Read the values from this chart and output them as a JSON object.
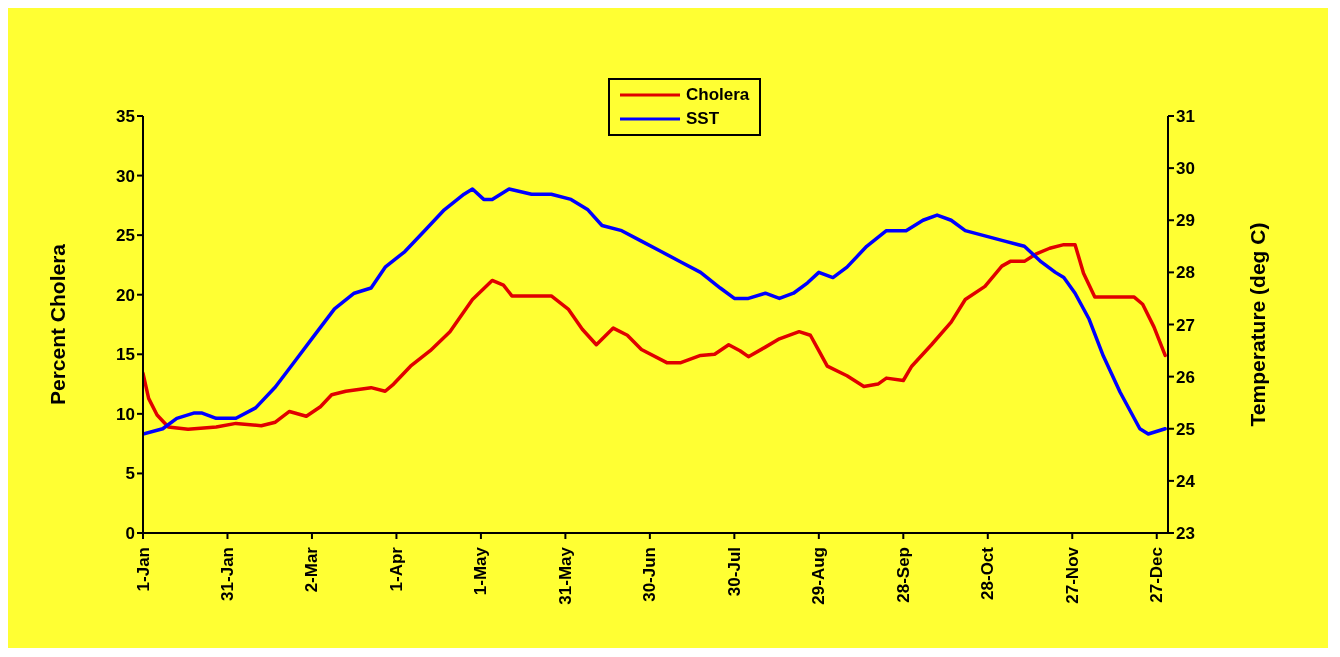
{
  "chart_data": {
    "type": "line",
    "ylabel": "Percent Cholera",
    "y2label": "Temperature (deg C)",
    "xlim": [
      "--01-01",
      "--12-31"
    ],
    "xticks": [
      {
        "value": "--01-01",
        "label": "1-Jan"
      },
      {
        "value": "--01-31",
        "label": "31-Jan"
      },
      {
        "value": "--03-02",
        "label": "2-Mar"
      },
      {
        "value": "--04-01",
        "label": "1-Apr"
      },
      {
        "value": "--05-01",
        "label": "1-May"
      },
      {
        "value": "--05-31",
        "label": "31-May"
      },
      {
        "value": "--06-30",
        "label": "30-Jun"
      },
      {
        "value": "--07-30",
        "label": "30-Jul"
      },
      {
        "value": "--08-29",
        "label": "29-Aug"
      },
      {
        "value": "--09-28",
        "label": "28-Sep"
      },
      {
        "value": "--10-28",
        "label": "28-Oct"
      },
      {
        "value": "--11-27",
        "label": "27-Nov"
      },
      {
        "value": "--12-27",
        "label": "27-Dec"
      }
    ],
    "ylim": [
      0,
      35
    ],
    "yticks": [
      0,
      5,
      10,
      15,
      20,
      25,
      30,
      35
    ],
    "y2lim": [
      23,
      31
    ],
    "y2ticks": [
      23,
      24,
      25,
      26,
      27,
      28,
      29,
      30,
      31
    ],
    "legend": "top",
    "marker": "none",
    "line_style": "solid",
    "series": [
      {
        "name": "Cholera",
        "color": "#e00000",
        "x": [
          "--01-01",
          "--01-03",
          "--01-06",
          "--01-10",
          "--01-17",
          "--01-27",
          "--02-03",
          "--02-12",
          "--02-17",
          "--02-22",
          "--02-28",
          "--03-05",
          "--03-09",
          "--03-14",
          "--03-23",
          "--03-28",
          "--03-31",
          "--04-06",
          "--04-13",
          "--04-20",
          "--04-28",
          "--05-05",
          "--05-09",
          "--05-12",
          "--05-26",
          "--06-01",
          "--06-06",
          "--06-11",
          "--06-17",
          "--06-22",
          "--06-27",
          "--07-06",
          "--07-11",
          "--07-18",
          "--07-23",
          "--07-28",
          "--08-01",
          "--08-04",
          "--08-10",
          "--08-15",
          "--08-22",
          "--08-26",
          "--08-29",
          "--09-01",
          "--09-08",
          "--09-14",
          "--09-19",
          "--09-22",
          "--09-28",
          "--10-01",
          "--10-08",
          "--10-15",
          "--10-20",
          "--10-27",
          "--11-02",
          "--11-05",
          "--11-10",
          "--11-14",
          "--11-19",
          "--11-24",
          "--11-28",
          "--12-01",
          "--12-05",
          "--12-19",
          "--12-22",
          "--12-26",
          "--12-30"
        ],
        "values": [
          13.4,
          11.3,
          9.9,
          8.9,
          8.7,
          8.9,
          9.2,
          9.0,
          9.3,
          10.2,
          9.8,
          10.6,
          11.6,
          11.9,
          12.2,
          11.9,
          12.5,
          14.0,
          15.3,
          16.9,
          19.6,
          21.2,
          20.8,
          19.9,
          19.9,
          18.8,
          17.1,
          15.8,
          17.2,
          16.6,
          15.4,
          14.3,
          14.3,
          14.9,
          15.0,
          15.8,
          15.3,
          14.8,
          15.6,
          16.3,
          16.9,
          16.6,
          15.3,
          14.0,
          13.2,
          12.3,
          12.5,
          13.0,
          12.8,
          14.0,
          15.8,
          17.7,
          19.6,
          20.7,
          22.4,
          22.8,
          22.8,
          23.4,
          23.9,
          24.2,
          24.2,
          21.8,
          19.8,
          19.8,
          19.2,
          17.3,
          14.9
        ]
      },
      {
        "name": "SST",
        "color": "#0000ff",
        "axis": "y2",
        "x": [
          "--01-01",
          "--01-08",
          "--01-13",
          "--01-19",
          "--01-22",
          "--01-27",
          "--02-03",
          "--02-10",
          "--02-17",
          "--02-24",
          "--03-03",
          "--03-10",
          "--03-17",
          "--03-23",
          "--03-28",
          "--04-04",
          "--04-11",
          "--04-18",
          "--04-25",
          "--04-28",
          "--05-02",
          "--05-05",
          "--05-11",
          "--05-19",
          "--05-26",
          "--06-02",
          "--06-08",
          "--06-13",
          "--06-20",
          "--06-27",
          "--07-04",
          "--07-11",
          "--07-18",
          "--07-25",
          "--07-30",
          "--08-04",
          "--08-10",
          "--08-15",
          "--08-20",
          "--08-25",
          "--08-29",
          "--09-03",
          "--09-08",
          "--09-15",
          "--09-22",
          "--09-29",
          "--10-05",
          "--10-10",
          "--10-15",
          "--10-20",
          "--10-27",
          "--11-03",
          "--11-10",
          "--11-16",
          "--11-21",
          "--11-24",
          "--11-28",
          "--12-03",
          "--12-08",
          "--12-14",
          "--12-21",
          "--12-24",
          "--12-30"
        ],
        "values": [
          24.9,
          25.0,
          25.2,
          25.3,
          25.3,
          25.2,
          25.2,
          25.4,
          25.8,
          26.3,
          26.8,
          27.3,
          27.6,
          27.7,
          28.1,
          28.4,
          28.8,
          29.2,
          29.5,
          29.6,
          29.4,
          29.4,
          29.6,
          29.5,
          29.5,
          29.4,
          29.2,
          28.9,
          28.8,
          28.6,
          28.4,
          28.2,
          28.0,
          27.7,
          27.5,
          27.5,
          27.6,
          27.5,
          27.6,
          27.8,
          28.0,
          27.9,
          28.1,
          28.5,
          28.8,
          28.8,
          29.0,
          29.1,
          29.0,
          28.8,
          28.7,
          28.6,
          28.5,
          28.2,
          28.0,
          27.9,
          27.6,
          27.1,
          26.4,
          25.7,
          25.0,
          24.9,
          25.0
        ]
      }
    ]
  }
}
